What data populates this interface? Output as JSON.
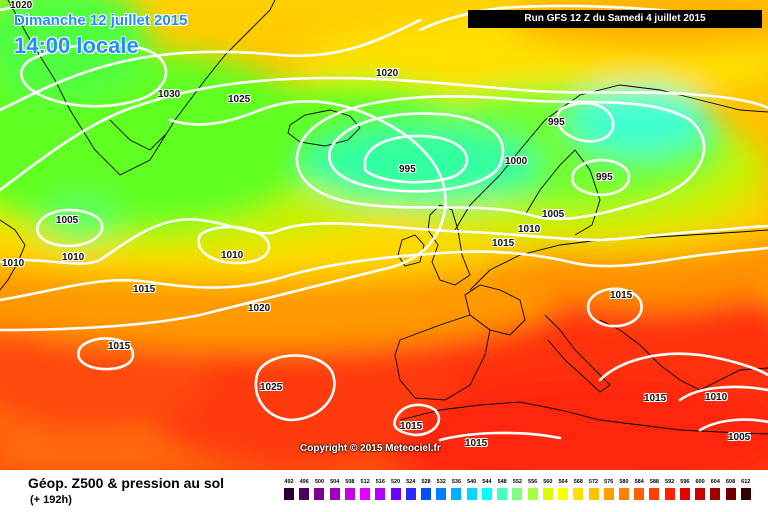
{
  "header": {
    "date": "Dimanche 12 juillet 2015",
    "local_time": "14:00 locale",
    "run_info": "Run GFS 12 Z du Samedi 4 juillet 2015"
  },
  "copyright": "Copyright © 2015 Meteociel.fr",
  "footer": {
    "title": "Géop. Z500 & pression au sol",
    "forecast_hour": "(+ 192h)"
  },
  "isobar_labels": {
    "l1020a": "1020",
    "l1030": "1030",
    "l1025a": "1025",
    "l1020b": "1020",
    "l995a": "995",
    "l995b": "995",
    "l1000": "1000",
    "l995c": "995",
    "l1005a": "1005",
    "l1010a": "1010",
    "l1010b": "1010",
    "l1010c": "1010",
    "l1005b": "1005",
    "l1015a": "1015",
    "l1010d": "1010",
    "l1015b": "1015",
    "l1020c": "1020",
    "l1015c": "1015",
    "l1015d": "1015",
    "l1025b": "1025",
    "l1015e": "1015",
    "l1015f": "1015",
    "l1015g": "1015",
    "l1010e": "1010",
    "l1005c": "1005"
  },
  "legend": {
    "labels": [
      "492",
      "496",
      "500",
      "504",
      "508",
      "512",
      "516",
      "520",
      "524",
      "528",
      "532",
      "536",
      "540",
      "544",
      "548",
      "552",
      "556",
      "560",
      "564",
      "568",
      "572",
      "576",
      "580",
      "584",
      "588",
      "592",
      "596",
      "600",
      "604",
      "608",
      "612"
    ],
    "colors": [
      "#2b0032",
      "#4b0060",
      "#7a0090",
      "#a000c0",
      "#c800e8",
      "#e400ff",
      "#b400ff",
      "#6a00ff",
      "#2a2aff",
      "#0050ff",
      "#0080ff",
      "#00b0ff",
      "#00d8ff",
      "#00ffff",
      "#40ffc0",
      "#80ff80",
      "#a8ff40",
      "#d8ff00",
      "#ffff00",
      "#ffe000",
      "#ffc000",
      "#ffa000",
      "#ff8000",
      "#ff6000",
      "#ff4000",
      "#ff2000",
      "#e80000",
      "#c80000",
      "#a00000",
      "#700000",
      "#300000"
    ]
  }
}
